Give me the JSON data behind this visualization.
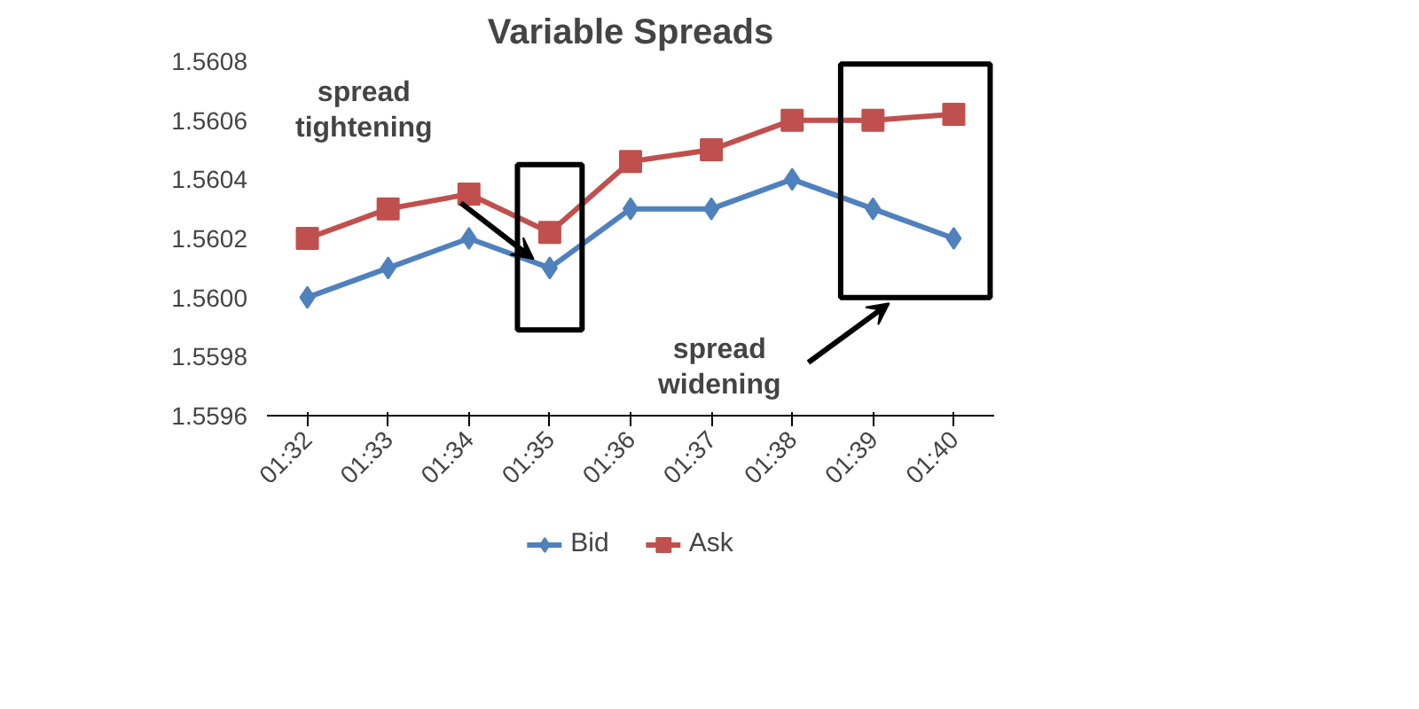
{
  "chart_data": {
    "type": "line",
    "title": "Variable Spreads",
    "categories": [
      "01:32",
      "01:33",
      "01:34",
      "01:35",
      "01:36",
      "01:37",
      "01:38",
      "01:39",
      "01:40"
    ],
    "series": [
      {
        "name": "Bid",
        "color": "#4f81bd",
        "marker": "diamond",
        "values": [
          1.56,
          1.5601,
          1.5602,
          1.5601,
          1.5603,
          1.5603,
          1.5604,
          1.5603,
          1.5602
        ]
      },
      {
        "name": "Ask",
        "color": "#c0504d",
        "marker": "square",
        "values": [
          1.5602,
          1.5603,
          1.56035,
          1.56022,
          1.56046,
          1.5605,
          1.5606,
          1.5606,
          1.56062
        ]
      }
    ],
    "ylim": [
      1.5596,
      1.5608
    ],
    "yticks": [
      1.5596,
      1.5598,
      {
        "value": 1.56,
        "label": "1.5600"
      },
      1.5602,
      1.5604,
      1.5606,
      1.5608
    ],
    "grid": false,
    "legend": "bottom",
    "annotations": [
      "spread tightening",
      "spread widening"
    ]
  }
}
